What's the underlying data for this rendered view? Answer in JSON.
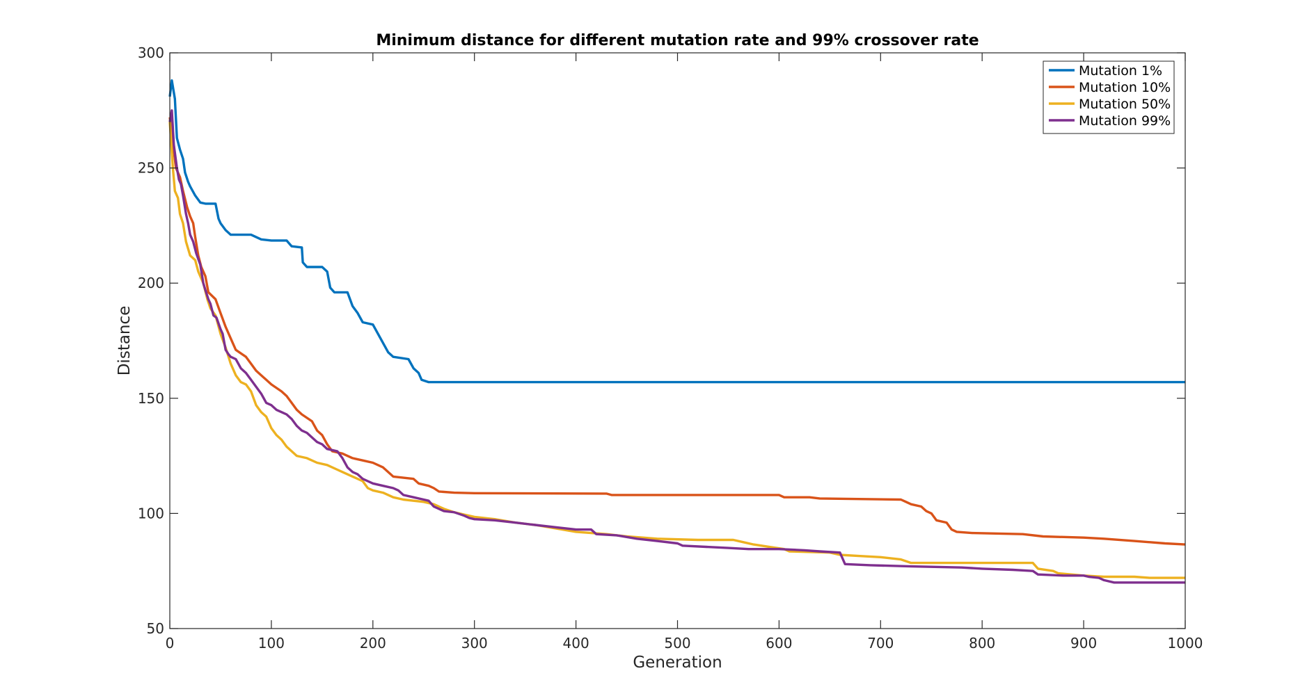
{
  "chart_data": {
    "type": "line",
    "title": "Minimum distance for different mutation rate and 99% crossover rate",
    "xlabel": "Generation",
    "ylabel": "Distance",
    "xlim": [
      0,
      1000
    ],
    "ylim": [
      50,
      300
    ],
    "xticks": [
      0,
      100,
      200,
      300,
      400,
      500,
      600,
      700,
      800,
      900,
      1000
    ],
    "yticks": [
      50,
      100,
      150,
      200,
      250,
      300
    ],
    "grid": false,
    "legend_position": "top-right",
    "series": [
      {
        "name": "Mutation 1%",
        "color": "#0072BD",
        "points": [
          [
            0,
            281
          ],
          [
            2,
            288
          ],
          [
            5,
            280
          ],
          [
            7,
            263
          ],
          [
            10,
            258
          ],
          [
            13,
            254
          ],
          [
            15,
            248
          ],
          [
            18,
            244
          ],
          [
            20,
            242
          ],
          [
            25,
            238
          ],
          [
            30,
            235
          ],
          [
            35,
            234.5
          ],
          [
            45,
            234.5
          ],
          [
            48,
            228
          ],
          [
            50,
            226
          ],
          [
            55,
            223
          ],
          [
            60,
            221
          ],
          [
            80,
            221
          ],
          [
            90,
            219
          ],
          [
            100,
            218.5
          ],
          [
            115,
            218.5
          ],
          [
            120,
            216
          ],
          [
            130,
            215.5
          ],
          [
            131,
            209
          ],
          [
            135,
            207
          ],
          [
            150,
            207
          ],
          [
            155,
            205
          ],
          [
            158,
            198
          ],
          [
            162,
            196
          ],
          [
            175,
            196
          ],
          [
            180,
            190
          ],
          [
            185,
            187
          ],
          [
            190,
            183
          ],
          [
            200,
            182
          ],
          [
            205,
            178
          ],
          [
            210,
            174
          ],
          [
            215,
            170
          ],
          [
            220,
            168
          ],
          [
            235,
            167
          ],
          [
            240,
            163
          ],
          [
            245,
            161
          ],
          [
            248,
            158
          ],
          [
            255,
            157
          ],
          [
            1000,
            157
          ]
        ]
      },
      {
        "name": "Mutation 10%",
        "color": "#D95319",
        "points": [
          [
            0,
            272
          ],
          [
            3,
            261
          ],
          [
            6,
            250
          ],
          [
            10,
            246
          ],
          [
            13,
            240
          ],
          [
            17,
            233
          ],
          [
            20,
            229
          ],
          [
            23,
            226
          ],
          [
            25,
            220
          ],
          [
            28,
            212
          ],
          [
            31,
            207
          ],
          [
            35,
            203
          ],
          [
            38,
            196
          ],
          [
            45,
            193
          ],
          [
            50,
            187
          ],
          [
            55,
            181
          ],
          [
            60,
            176
          ],
          [
            65,
            171
          ],
          [
            75,
            168
          ],
          [
            80,
            165
          ],
          [
            85,
            162
          ],
          [
            90,
            160
          ],
          [
            95,
            158
          ],
          [
            100,
            156
          ],
          [
            110,
            153
          ],
          [
            115,
            151
          ],
          [
            120,
            148
          ],
          [
            125,
            145
          ],
          [
            130,
            143
          ],
          [
            140,
            140
          ],
          [
            145,
            136
          ],
          [
            150,
            134
          ],
          [
            155,
            130
          ],
          [
            160,
            127
          ],
          [
            170,
            126
          ],
          [
            180,
            124
          ],
          [
            190,
            123
          ],
          [
            200,
            122
          ],
          [
            210,
            120
          ],
          [
            220,
            116
          ],
          [
            240,
            115
          ],
          [
            245,
            113
          ],
          [
            255,
            112
          ],
          [
            260,
            111
          ],
          [
            265,
            109.5
          ],
          [
            280,
            109
          ],
          [
            300,
            108.8
          ],
          [
            430,
            108.6
          ],
          [
            435,
            108
          ],
          [
            500,
            108
          ],
          [
            600,
            108
          ],
          [
            605,
            107
          ],
          [
            630,
            107
          ],
          [
            640,
            106.5
          ],
          [
            720,
            106
          ],
          [
            725,
            105
          ],
          [
            730,
            104
          ],
          [
            740,
            103
          ],
          [
            745,
            101
          ],
          [
            750,
            100
          ],
          [
            755,
            97
          ],
          [
            765,
            96
          ],
          [
            770,
            93
          ],
          [
            775,
            92
          ],
          [
            790,
            91.5
          ],
          [
            840,
            91
          ],
          [
            860,
            90
          ],
          [
            900,
            89.5
          ],
          [
            920,
            89
          ],
          [
            950,
            88
          ],
          [
            980,
            87
          ],
          [
            1000,
            86.5
          ]
        ]
      },
      {
        "name": "Mutation 50%",
        "color": "#EDB120",
        "points": [
          [
            0,
            270
          ],
          [
            3,
            250
          ],
          [
            5,
            240
          ],
          [
            8,
            237
          ],
          [
            10,
            230
          ],
          [
            13,
            226
          ],
          [
            16,
            218
          ],
          [
            20,
            212
          ],
          [
            25,
            210
          ],
          [
            28,
            205
          ],
          [
            33,
            200
          ],
          [
            37,
            193
          ],
          [
            40,
            189
          ],
          [
            45,
            186
          ],
          [
            50,
            178
          ],
          [
            55,
            172
          ],
          [
            60,
            165
          ],
          [
            65,
            160
          ],
          [
            70,
            157
          ],
          [
            75,
            156
          ],
          [
            80,
            153
          ],
          [
            85,
            147
          ],
          [
            90,
            144
          ],
          [
            95,
            142
          ],
          [
            100,
            137
          ],
          [
            105,
            134
          ],
          [
            110,
            132
          ],
          [
            115,
            129
          ],
          [
            120,
            127
          ],
          [
            125,
            125
          ],
          [
            135,
            124
          ],
          [
            145,
            122
          ],
          [
            155,
            121
          ],
          [
            165,
            119
          ],
          [
            170,
            118
          ],
          [
            180,
            116
          ],
          [
            190,
            114
          ],
          [
            195,
            111
          ],
          [
            200,
            110
          ],
          [
            210,
            109
          ],
          [
            220,
            107
          ],
          [
            230,
            106
          ],
          [
            250,
            105
          ],
          [
            260,
            104
          ],
          [
            270,
            102
          ],
          [
            280,
            100.5
          ],
          [
            290,
            99.5
          ],
          [
            300,
            98.5
          ],
          [
            320,
            97.5
          ],
          [
            340,
            96
          ],
          [
            360,
            95
          ],
          [
            380,
            93.5
          ],
          [
            400,
            92
          ],
          [
            430,
            91
          ],
          [
            450,
            90
          ],
          [
            480,
            89
          ],
          [
            520,
            88.5
          ],
          [
            555,
            88.5
          ],
          [
            565,
            87.5
          ],
          [
            575,
            86.5
          ],
          [
            590,
            85.5
          ],
          [
            605,
            84.5
          ],
          [
            610,
            83.5
          ],
          [
            650,
            83
          ],
          [
            660,
            82
          ],
          [
            680,
            81.5
          ],
          [
            700,
            81
          ],
          [
            720,
            80
          ],
          [
            730,
            78.5
          ],
          [
            750,
            78.5
          ],
          [
            850,
            78.5
          ],
          [
            855,
            76
          ],
          [
            870,
            75
          ],
          [
            875,
            74
          ],
          [
            900,
            73
          ],
          [
            920,
            72.5
          ],
          [
            950,
            72.5
          ],
          [
            965,
            72
          ],
          [
            1000,
            72
          ]
        ]
      },
      {
        "name": "Mutation 99%",
        "color": "#7E2F8E",
        "points": [
          [
            0,
            270
          ],
          [
            2,
            275
          ],
          [
            4,
            260
          ],
          [
            7,
            250
          ],
          [
            9,
            245
          ],
          [
            11,
            243
          ],
          [
            13,
            238
          ],
          [
            16,
            230
          ],
          [
            18,
            226
          ],
          [
            20,
            221
          ],
          [
            23,
            218
          ],
          [
            26,
            213
          ],
          [
            30,
            208
          ],
          [
            33,
            200
          ],
          [
            35,
            197
          ],
          [
            38,
            193
          ],
          [
            40,
            191
          ],
          [
            43,
            186
          ],
          [
            46,
            185
          ],
          [
            50,
            180
          ],
          [
            52,
            178
          ],
          [
            55,
            171
          ],
          [
            58,
            169
          ],
          [
            60,
            168
          ],
          [
            65,
            167
          ],
          [
            70,
            163
          ],
          [
            75,
            161
          ],
          [
            80,
            158
          ],
          [
            85,
            155
          ],
          [
            90,
            152
          ],
          [
            95,
            148
          ],
          [
            100,
            147
          ],
          [
            105,
            145
          ],
          [
            110,
            144
          ],
          [
            115,
            143
          ],
          [
            120,
            141
          ],
          [
            125,
            138
          ],
          [
            130,
            136
          ],
          [
            135,
            135
          ],
          [
            140,
            133
          ],
          [
            145,
            131
          ],
          [
            150,
            130
          ],
          [
            155,
            128
          ],
          [
            165,
            127
          ],
          [
            170,
            124
          ],
          [
            175,
            120
          ],
          [
            180,
            118
          ],
          [
            185,
            117
          ],
          [
            190,
            115
          ],
          [
            195,
            114
          ],
          [
            200,
            113
          ],
          [
            210,
            112
          ],
          [
            220,
            111
          ],
          [
            225,
            110
          ],
          [
            230,
            108
          ],
          [
            240,
            107
          ],
          [
            250,
            106
          ],
          [
            255,
            105.5
          ],
          [
            260,
            103
          ],
          [
            270,
            101
          ],
          [
            280,
            100.5
          ],
          [
            290,
            99
          ],
          [
            295,
            98
          ],
          [
            300,
            97.5
          ],
          [
            320,
            97
          ],
          [
            340,
            96
          ],
          [
            360,
            95
          ],
          [
            380,
            94
          ],
          [
            400,
            93
          ],
          [
            415,
            93
          ],
          [
            420,
            91
          ],
          [
            440,
            90.5
          ],
          [
            460,
            89
          ],
          [
            480,
            88
          ],
          [
            500,
            87
          ],
          [
            505,
            86
          ],
          [
            550,
            85
          ],
          [
            570,
            84.5
          ],
          [
            600,
            84.5
          ],
          [
            625,
            84
          ],
          [
            640,
            83.5
          ],
          [
            660,
            83
          ],
          [
            665,
            78
          ],
          [
            690,
            77.5
          ],
          [
            730,
            77
          ],
          [
            780,
            76.5
          ],
          [
            800,
            76
          ],
          [
            830,
            75.5
          ],
          [
            850,
            75
          ],
          [
            855,
            73.5
          ],
          [
            880,
            73
          ],
          [
            900,
            73
          ],
          [
            905,
            72.5
          ],
          [
            915,
            72
          ],
          [
            920,
            71
          ],
          [
            930,
            70
          ],
          [
            1000,
            70
          ]
        ]
      }
    ]
  }
}
